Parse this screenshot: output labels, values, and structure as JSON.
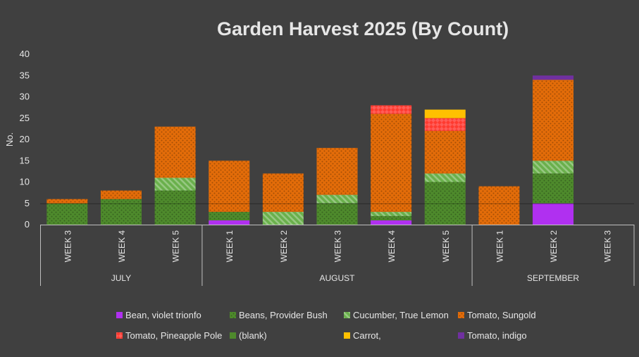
{
  "chart_data": {
    "type": "bar",
    "stacked": true,
    "title": "Garden Harvest 2025 (By Count)",
    "ylabel": "No.",
    "ylim": [
      0,
      40
    ],
    "yticks": [
      0,
      5,
      10,
      15,
      20,
      25,
      30,
      35,
      40
    ],
    "months": [
      {
        "label": "JULY",
        "weeks": [
          "WEEK 3",
          "WEEK 4",
          "WEEK 5"
        ]
      },
      {
        "label": "AUGUST",
        "weeks": [
          "WEEK 1",
          "WEEK 2",
          "WEEK 3",
          "WEEK 4",
          "WEEK 5"
        ]
      },
      {
        "label": "SEPTEMBER",
        "weeks": [
          "WEEK 1",
          "WEEK 2",
          "WEEK 3"
        ]
      }
    ],
    "series": [
      {
        "name": "Bean, violet trionfo",
        "color": "#b030f0",
        "pattern": "solid",
        "values": [
          0,
          0,
          0,
          1,
          0,
          0,
          1,
          0,
          0,
          5,
          0
        ]
      },
      {
        "name": "Beans, Provider Bush",
        "color": "#4e8a2c",
        "pattern": "dots",
        "values": [
          5,
          6,
          8,
          2,
          0,
          5,
          1,
          10,
          0,
          7,
          0
        ]
      },
      {
        "name": "Cucumber, True Lemon",
        "color": "#6ab04c",
        "pattern": "stripes",
        "values": [
          0,
          0,
          3,
          0,
          3,
          2,
          1,
          2,
          0,
          3,
          0
        ]
      },
      {
        "name": "Tomato, Sungold",
        "color": "#e36c09",
        "pattern": "dots",
        "values": [
          1,
          2,
          12,
          12,
          9,
          11,
          23,
          10,
          9,
          19,
          0
        ]
      },
      {
        "name": "Tomato, Pineapple Pole",
        "color": "#ff3b30",
        "pattern": "diamonds",
        "values": [
          0,
          0,
          0,
          0,
          0,
          0,
          2,
          3,
          0,
          0,
          0
        ]
      },
      {
        "name": "(blank)",
        "color": "#4e8a2c",
        "pattern": "solid",
        "values": [
          0,
          0,
          0,
          0,
          0,
          0,
          0,
          0,
          0,
          0,
          0
        ]
      },
      {
        "name": "Carrot,",
        "color": "#ffc000",
        "pattern": "solid",
        "values": [
          0,
          0,
          0,
          0,
          0,
          0,
          0,
          2,
          0,
          0,
          0
        ]
      },
      {
        "name": "Tomato, indigo",
        "color": "#7030a0",
        "pattern": "solid",
        "values": [
          0,
          0,
          0,
          0,
          0,
          0,
          0,
          0,
          0,
          1,
          0
        ]
      }
    ],
    "legend_position": "bottom",
    "grid": false
  }
}
